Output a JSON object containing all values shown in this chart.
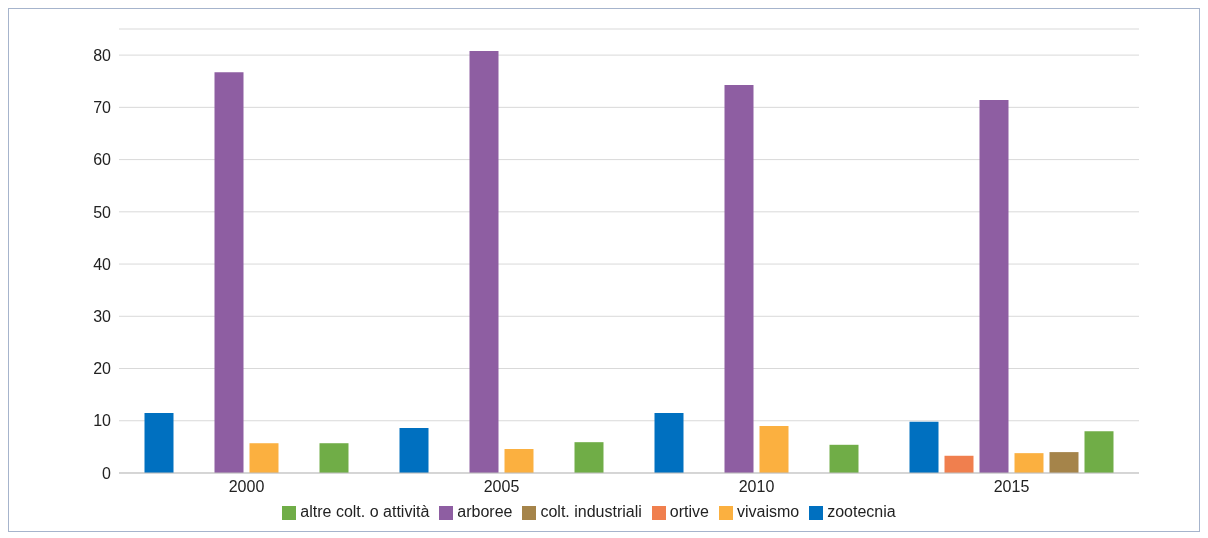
{
  "chart_data": {
    "type": "bar",
    "categories": [
      "2000",
      "2005",
      "2010",
      "2015"
    ],
    "series": [
      {
        "name": "zootecnia",
        "color": "#0070c0",
        "values": [
          11.5,
          8.6,
          11.5,
          9.8
        ]
      },
      {
        "name": "ortive",
        "color": "#f07f4e",
        "values": [
          null,
          null,
          null,
          3.3
        ]
      },
      {
        "name": "arboree",
        "color": "#8e5ea2",
        "values": [
          76.7,
          80.8,
          74.3,
          71.4
        ]
      },
      {
        "name": "vivaismo",
        "color": "#fbb040",
        "values": [
          5.7,
          4.6,
          9.0,
          3.8
        ]
      },
      {
        "name": "colt. industriali",
        "color": "#a5844a",
        "values": [
          null,
          null,
          null,
          4.0
        ]
      },
      {
        "name": "altre colt. o attività",
        "color": "#70ad47",
        "values": [
          5.7,
          5.9,
          5.4,
          8.0
        ]
      }
    ],
    "ylim": [
      0,
      85
    ],
    "yticks": [
      0,
      10,
      20,
      30,
      40,
      50,
      60,
      70,
      80
    ],
    "grid": "y",
    "legend": "bottom"
  }
}
